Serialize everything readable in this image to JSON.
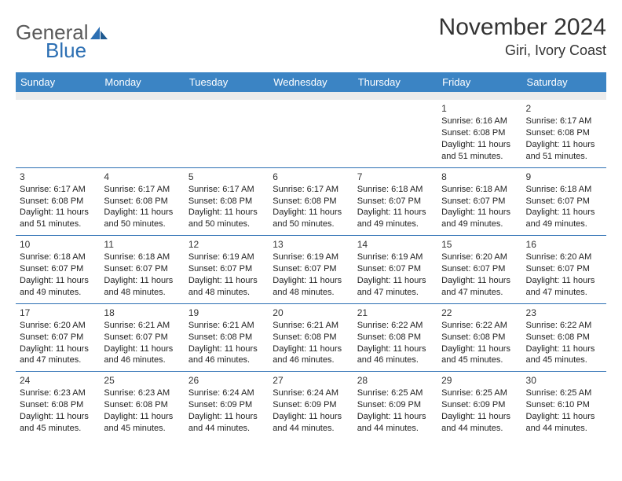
{
  "logo": {
    "text1": "General",
    "text2": "Blue"
  },
  "title": "November 2024",
  "location": "Giri, Ivory Coast",
  "colors": {
    "header_bg": "#3b84c4",
    "header_text": "#ffffff",
    "rule": "#2c6fb3",
    "spacer_bg": "#ececec",
    "logo_gray": "#5a5a5a",
    "logo_blue": "#2c6fb3",
    "body_text": "#222222"
  },
  "typography": {
    "month_title_fontsize": 30,
    "location_fontsize": 18,
    "dayheader_fontsize": 13,
    "daynum_fontsize": 12,
    "cell_fontsize": 11
  },
  "day_headers": [
    "Sunday",
    "Monday",
    "Tuesday",
    "Wednesday",
    "Thursday",
    "Friday",
    "Saturday"
  ],
  "weeks": [
    [
      null,
      null,
      null,
      null,
      null,
      {
        "n": "1",
        "sunrise": "Sunrise: 6:16 AM",
        "sunset": "Sunset: 6:08 PM",
        "daylight": "Daylight: 11 hours and 51 minutes."
      },
      {
        "n": "2",
        "sunrise": "Sunrise: 6:17 AM",
        "sunset": "Sunset: 6:08 PM",
        "daylight": "Daylight: 11 hours and 51 minutes."
      }
    ],
    [
      {
        "n": "3",
        "sunrise": "Sunrise: 6:17 AM",
        "sunset": "Sunset: 6:08 PM",
        "daylight": "Daylight: 11 hours and 51 minutes."
      },
      {
        "n": "4",
        "sunrise": "Sunrise: 6:17 AM",
        "sunset": "Sunset: 6:08 PM",
        "daylight": "Daylight: 11 hours and 50 minutes."
      },
      {
        "n": "5",
        "sunrise": "Sunrise: 6:17 AM",
        "sunset": "Sunset: 6:08 PM",
        "daylight": "Daylight: 11 hours and 50 minutes."
      },
      {
        "n": "6",
        "sunrise": "Sunrise: 6:17 AM",
        "sunset": "Sunset: 6:08 PM",
        "daylight": "Daylight: 11 hours and 50 minutes."
      },
      {
        "n": "7",
        "sunrise": "Sunrise: 6:18 AM",
        "sunset": "Sunset: 6:07 PM",
        "daylight": "Daylight: 11 hours and 49 minutes."
      },
      {
        "n": "8",
        "sunrise": "Sunrise: 6:18 AM",
        "sunset": "Sunset: 6:07 PM",
        "daylight": "Daylight: 11 hours and 49 minutes."
      },
      {
        "n": "9",
        "sunrise": "Sunrise: 6:18 AM",
        "sunset": "Sunset: 6:07 PM",
        "daylight": "Daylight: 11 hours and 49 minutes."
      }
    ],
    [
      {
        "n": "10",
        "sunrise": "Sunrise: 6:18 AM",
        "sunset": "Sunset: 6:07 PM",
        "daylight": "Daylight: 11 hours and 49 minutes."
      },
      {
        "n": "11",
        "sunrise": "Sunrise: 6:18 AM",
        "sunset": "Sunset: 6:07 PM",
        "daylight": "Daylight: 11 hours and 48 minutes."
      },
      {
        "n": "12",
        "sunrise": "Sunrise: 6:19 AM",
        "sunset": "Sunset: 6:07 PM",
        "daylight": "Daylight: 11 hours and 48 minutes."
      },
      {
        "n": "13",
        "sunrise": "Sunrise: 6:19 AM",
        "sunset": "Sunset: 6:07 PM",
        "daylight": "Daylight: 11 hours and 48 minutes."
      },
      {
        "n": "14",
        "sunrise": "Sunrise: 6:19 AM",
        "sunset": "Sunset: 6:07 PM",
        "daylight": "Daylight: 11 hours and 47 minutes."
      },
      {
        "n": "15",
        "sunrise": "Sunrise: 6:20 AM",
        "sunset": "Sunset: 6:07 PM",
        "daylight": "Daylight: 11 hours and 47 minutes."
      },
      {
        "n": "16",
        "sunrise": "Sunrise: 6:20 AM",
        "sunset": "Sunset: 6:07 PM",
        "daylight": "Daylight: 11 hours and 47 minutes."
      }
    ],
    [
      {
        "n": "17",
        "sunrise": "Sunrise: 6:20 AM",
        "sunset": "Sunset: 6:07 PM",
        "daylight": "Daylight: 11 hours and 47 minutes."
      },
      {
        "n": "18",
        "sunrise": "Sunrise: 6:21 AM",
        "sunset": "Sunset: 6:07 PM",
        "daylight": "Daylight: 11 hours and 46 minutes."
      },
      {
        "n": "19",
        "sunrise": "Sunrise: 6:21 AM",
        "sunset": "Sunset: 6:08 PM",
        "daylight": "Daylight: 11 hours and 46 minutes."
      },
      {
        "n": "20",
        "sunrise": "Sunrise: 6:21 AM",
        "sunset": "Sunset: 6:08 PM",
        "daylight": "Daylight: 11 hours and 46 minutes."
      },
      {
        "n": "21",
        "sunrise": "Sunrise: 6:22 AM",
        "sunset": "Sunset: 6:08 PM",
        "daylight": "Daylight: 11 hours and 46 minutes."
      },
      {
        "n": "22",
        "sunrise": "Sunrise: 6:22 AM",
        "sunset": "Sunset: 6:08 PM",
        "daylight": "Daylight: 11 hours and 45 minutes."
      },
      {
        "n": "23",
        "sunrise": "Sunrise: 6:22 AM",
        "sunset": "Sunset: 6:08 PM",
        "daylight": "Daylight: 11 hours and 45 minutes."
      }
    ],
    [
      {
        "n": "24",
        "sunrise": "Sunrise: 6:23 AM",
        "sunset": "Sunset: 6:08 PM",
        "daylight": "Daylight: 11 hours and 45 minutes."
      },
      {
        "n": "25",
        "sunrise": "Sunrise: 6:23 AM",
        "sunset": "Sunset: 6:08 PM",
        "daylight": "Daylight: 11 hours and 45 minutes."
      },
      {
        "n": "26",
        "sunrise": "Sunrise: 6:24 AM",
        "sunset": "Sunset: 6:09 PM",
        "daylight": "Daylight: 11 hours and 44 minutes."
      },
      {
        "n": "27",
        "sunrise": "Sunrise: 6:24 AM",
        "sunset": "Sunset: 6:09 PM",
        "daylight": "Daylight: 11 hours and 44 minutes."
      },
      {
        "n": "28",
        "sunrise": "Sunrise: 6:25 AM",
        "sunset": "Sunset: 6:09 PM",
        "daylight": "Daylight: 11 hours and 44 minutes."
      },
      {
        "n": "29",
        "sunrise": "Sunrise: 6:25 AM",
        "sunset": "Sunset: 6:09 PM",
        "daylight": "Daylight: 11 hours and 44 minutes."
      },
      {
        "n": "30",
        "sunrise": "Sunrise: 6:25 AM",
        "sunset": "Sunset: 6:10 PM",
        "daylight": "Daylight: 11 hours and 44 minutes."
      }
    ]
  ]
}
